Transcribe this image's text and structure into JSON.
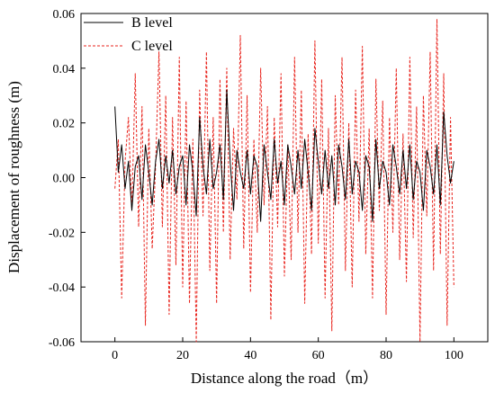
{
  "chart_data": {
    "type": "line",
    "xlabel": "Distance along the road（m）",
    "ylabel": "Displacement of roughness (m)",
    "xlim": [
      -10,
      110
    ],
    "ylim": [
      -0.06,
      0.06
    ],
    "x_ticks": [
      0,
      20,
      40,
      60,
      80,
      100
    ],
    "y_ticks": [
      -0.06,
      -0.04,
      -0.02,
      0.0,
      0.02,
      0.04,
      0.06
    ],
    "x_tick_labels": [
      "0",
      "20",
      "40",
      "60",
      "80",
      "100"
    ],
    "y_tick_labels": [
      "-0.06",
      "-0.04",
      "-0.02",
      "0.00",
      "0.02",
      "0.04",
      "0.06"
    ],
    "grid": false,
    "legend_position": "top-left",
    "series": [
      {
        "name": "B level",
        "color": "#000000",
        "style": "solid",
        "x": [
          0,
          1,
          2,
          3,
          4,
          5,
          6,
          7,
          8,
          9,
          10,
          11,
          12,
          13,
          14,
          15,
          16,
          17,
          18,
          19,
          20,
          21,
          22,
          23,
          24,
          25,
          26,
          27,
          28,
          29,
          30,
          31,
          32,
          33,
          34,
          35,
          36,
          37,
          38,
          39,
          40,
          41,
          42,
          43,
          44,
          45,
          46,
          47,
          48,
          49,
          50,
          51,
          52,
          53,
          54,
          55,
          56,
          57,
          58,
          59,
          60,
          61,
          62,
          63,
          64,
          65,
          66,
          67,
          68,
          69,
          70,
          71,
          72,
          73,
          74,
          75,
          76,
          77,
          78,
          79,
          80,
          81,
          82,
          83,
          84,
          85,
          86,
          87,
          88,
          89,
          90,
          91,
          92,
          93,
          94,
          95,
          96,
          97,
          98,
          99,
          100
        ],
        "y": [
          0.026,
          0.002,
          0.012,
          -0.004,
          0.006,
          -0.012,
          0.004,
          0.008,
          -0.008,
          0.012,
          0.002,
          -0.01,
          0.006,
          0.014,
          -0.004,
          0.008,
          -0.002,
          0.01,
          -0.006,
          0.004,
          0.008,
          -0.01,
          0.012,
          0.002,
          -0.014,
          0.022,
          0.004,
          -0.006,
          0.014,
          -0.004,
          0.002,
          0.012,
          -0.008,
          0.032,
          0.006,
          -0.012,
          0.01,
          0.002,
          -0.004,
          0.01,
          -0.006,
          0.008,
          0.004,
          -0.016,
          0.012,
          0.002,
          -0.008,
          0.014,
          -0.002,
          0.006,
          -0.01,
          0.012,
          0.004,
          -0.006,
          0.01,
          -0.004,
          0.014,
          0.002,
          -0.012,
          0.018,
          0.006,
          -0.006,
          0.01,
          -0.004,
          0.008,
          -0.01,
          0.012,
          0.004,
          -0.008,
          0.014,
          -0.006,
          0.006,
          0.002,
          -0.012,
          0.008,
          0.004,
          -0.016,
          0.014,
          -0.004,
          0.006,
          0.002,
          -0.01,
          0.012,
          0.004,
          -0.006,
          0.01,
          -0.004,
          0.012,
          -0.008,
          0.006,
          0.002,
          -0.012,
          0.01,
          0.004,
          -0.006,
          0.012,
          -0.01,
          0.024,
          0.008,
          -0.002,
          0.006
        ]
      },
      {
        "name": "C level",
        "color": "#e8231c",
        "style": "dashed",
        "x": [
          0,
          1,
          2,
          3,
          4,
          5,
          6,
          7,
          8,
          9,
          10,
          11,
          12,
          13,
          14,
          15,
          16,
          17,
          18,
          19,
          20,
          21,
          22,
          23,
          24,
          25,
          26,
          27,
          28,
          29,
          30,
          31,
          32,
          33,
          34,
          35,
          36,
          37,
          38,
          39,
          40,
          41,
          42,
          43,
          44,
          45,
          46,
          47,
          48,
          49,
          50,
          51,
          52,
          53,
          54,
          55,
          56,
          57,
          58,
          59,
          60,
          61,
          62,
          63,
          64,
          65,
          66,
          67,
          68,
          69,
          70,
          71,
          72,
          73,
          74,
          75,
          76,
          77,
          78,
          79,
          80,
          81,
          82,
          83,
          84,
          85,
          86,
          87,
          88,
          89,
          90,
          91,
          92,
          93,
          94,
          95,
          96,
          97,
          98,
          99,
          100
        ],
        "y": [
          -0.004,
          0.014,
          -0.044,
          0.006,
          0.022,
          -0.012,
          0.038,
          -0.018,
          0.026,
          -0.054,
          0.018,
          -0.026,
          0.004,
          0.046,
          -0.018,
          0.03,
          -0.05,
          0.022,
          -0.032,
          0.044,
          -0.04,
          0.028,
          -0.046,
          0.014,
          -0.06,
          0.032,
          -0.014,
          0.046,
          -0.034,
          0.022,
          -0.046,
          0.036,
          -0.02,
          0.04,
          -0.03,
          0.018,
          -0.008,
          0.052,
          -0.026,
          0.03,
          -0.042,
          0.014,
          -0.02,
          0.04,
          -0.01,
          0.026,
          -0.052,
          0.022,
          -0.018,
          0.038,
          -0.036,
          0.012,
          -0.03,
          0.044,
          -0.02,
          0.032,
          -0.046,
          0.016,
          -0.028,
          0.05,
          -0.024,
          0.036,
          -0.044,
          0.018,
          -0.056,
          0.03,
          -0.01,
          0.044,
          -0.034,
          0.02,
          -0.04,
          0.032,
          -0.016,
          0.048,
          -0.028,
          0.018,
          -0.044,
          0.036,
          -0.012,
          0.028,
          -0.05,
          0.022,
          -0.02,
          0.04,
          -0.03,
          0.016,
          -0.038,
          0.044,
          -0.022,
          0.026,
          -0.06,
          0.03,
          -0.014,
          0.046,
          -0.034,
          0.058,
          -0.028,
          0.038,
          -0.054,
          0.022,
          -0.04
        ]
      }
    ]
  }
}
